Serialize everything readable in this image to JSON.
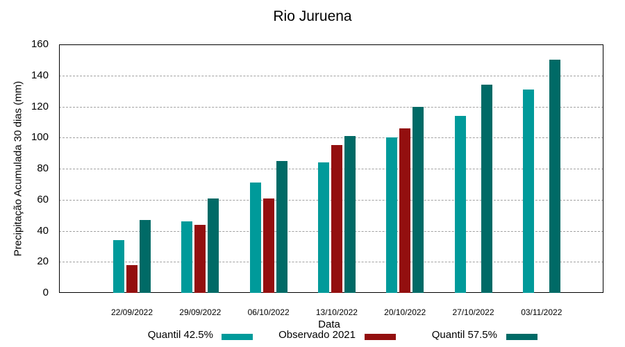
{
  "chart_data": {
    "type": "bar",
    "title": "Rio Juruena",
    "xlabel": "Data",
    "ylabel": "Precipitação Acumulada 30 dias (mm)",
    "ylim": [
      0,
      160
    ],
    "yticks": [
      0,
      20,
      40,
      60,
      80,
      100,
      120,
      140,
      160
    ],
    "grid": true,
    "legend_position": "bottom",
    "categories": [
      "22/09/2022",
      "29/09/2022",
      "06/10/2022",
      "13/10/2022",
      "20/10/2022",
      "27/10/2022",
      "03/11/2022"
    ],
    "series": [
      {
        "name": "Quantil 42.5%",
        "color": "#009a9a",
        "values": [
          34,
          46,
          71,
          84,
          100,
          114,
          131
        ]
      },
      {
        "name": "Observado 2021",
        "color": "#930f0f",
        "values": [
          18,
          44,
          61,
          95,
          106,
          null,
          null
        ]
      },
      {
        "name": "Quantil 57.5%",
        "color": "#006a66",
        "values": [
          47,
          61,
          85,
          101,
          120,
          134,
          150
        ]
      }
    ]
  }
}
